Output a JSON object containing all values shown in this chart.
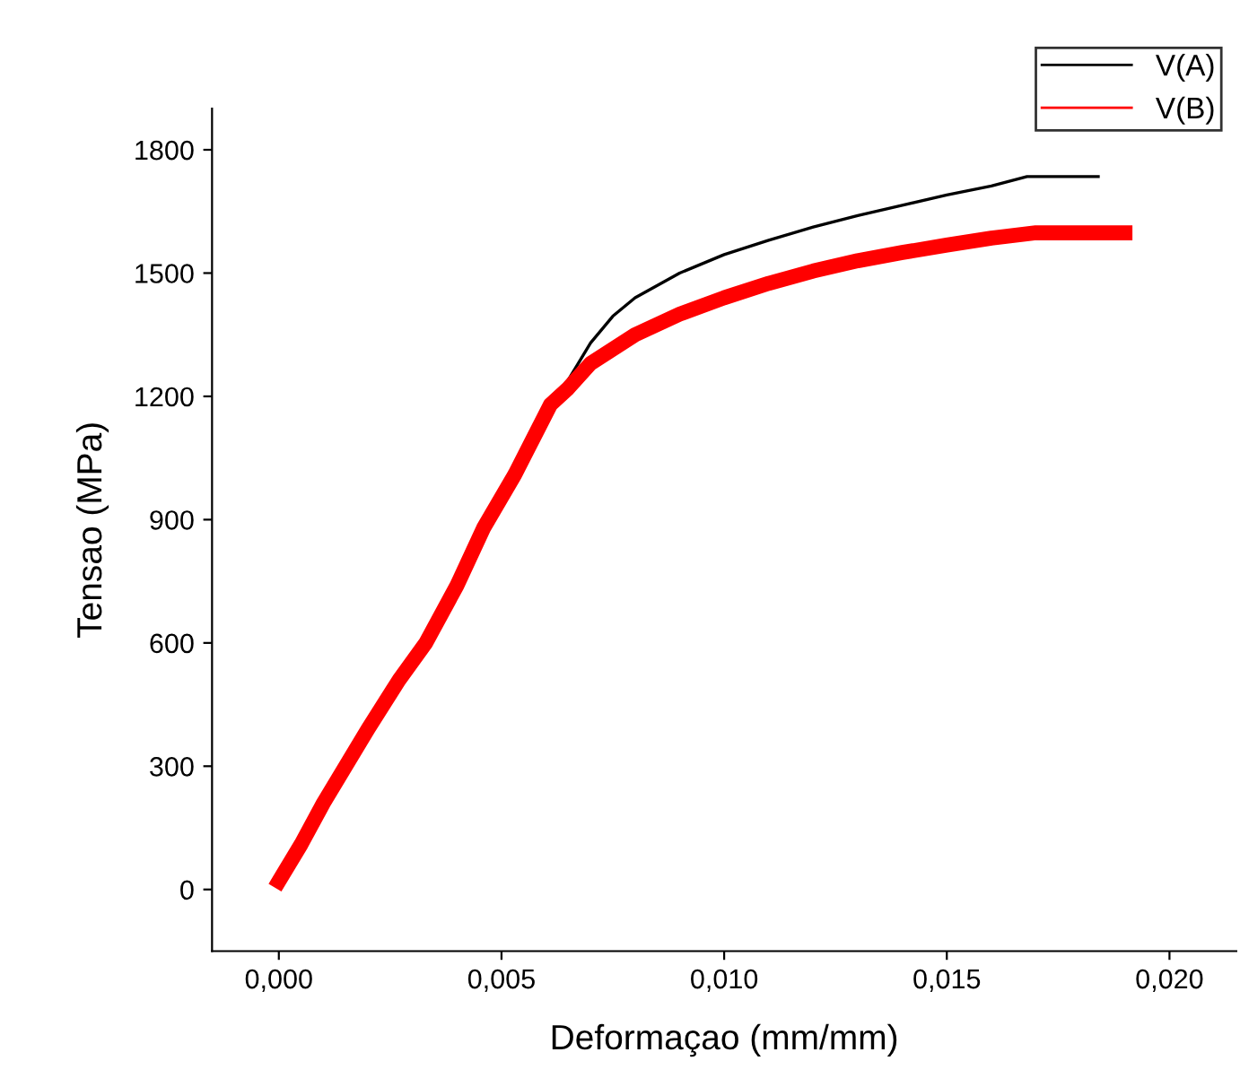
{
  "chart_data": {
    "type": "line",
    "xlabel": "Deformaçao (mm/mm)",
    "ylabel": "Tensao (MPa)",
    "xlim": [
      -0.0015,
      0.0215
    ],
    "ylim": [
      -150,
      1900
    ],
    "xticks": [
      {
        "value": 0,
        "label": "0,000"
      },
      {
        "value": 0.005,
        "label": "0,005"
      },
      {
        "value": 0.01,
        "label": "0,010"
      },
      {
        "value": 0.015,
        "label": "0,015"
      },
      {
        "value": 0.02,
        "label": "0,020"
      }
    ],
    "yticks": [
      0,
      300,
      600,
      900,
      1200,
      1500,
      1800
    ],
    "grid": false,
    "legend": "top right",
    "marker": "none",
    "line_style": "solid",
    "series": [
      {
        "name": "V(A)",
        "color": "#000000",
        "x": [
          0.0065,
          0.007,
          0.0075,
          0.008,
          0.009,
          0.01,
          0.011,
          0.012,
          0.013,
          0.014,
          0.015,
          0.016,
          0.0168,
          0.0184
        ],
        "values": [
          1240,
          1330,
          1395,
          1440,
          1500,
          1545,
          1580,
          1612,
          1640,
          1665,
          1690,
          1712,
          1735,
          1735
        ]
      },
      {
        "name": "V(B)",
        "color": "#ff0000",
        "x": [
          0,
          0.0005,
          0.001,
          0.0015,
          0.002,
          0.0027,
          0.0033,
          0.004,
          0.0046,
          0.0053,
          0.0061,
          0.0065,
          0.007,
          0.008,
          0.009,
          0.01,
          0.011,
          0.012,
          0.013,
          0.014,
          0.015,
          0.016,
          0.017,
          0.019
        ],
        "values": [
          20,
          110,
          210,
          300,
          390,
          510,
          600,
          740,
          880,
          1010,
          1180,
          1220,
          1280,
          1350,
          1400,
          1440,
          1475,
          1505,
          1530,
          1550,
          1568,
          1585,
          1598,
          1598
        ]
      }
    ]
  }
}
